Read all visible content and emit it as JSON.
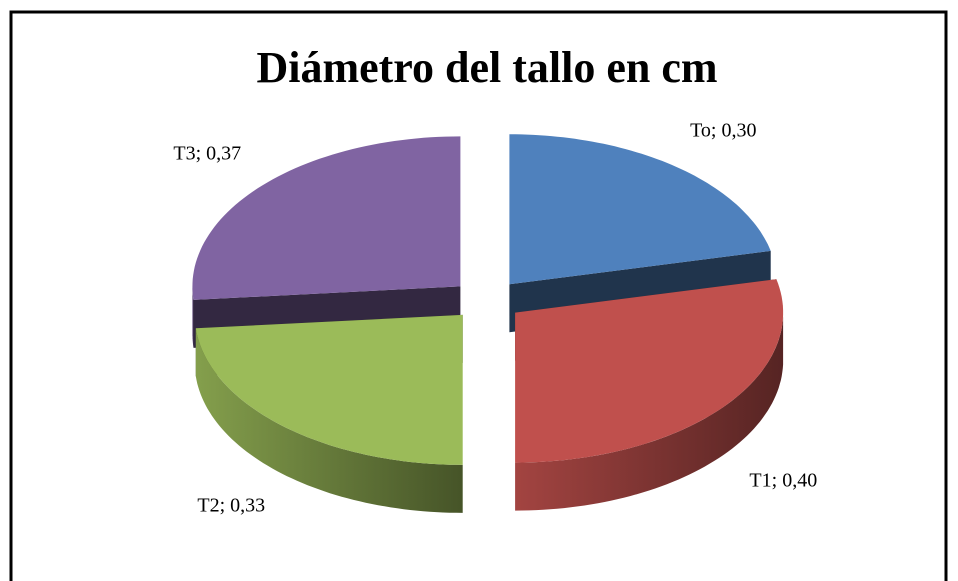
{
  "chart_data": {
    "type": "pie",
    "title": "Diámetro del tallo en cm",
    "categories": [
      "To",
      "T1",
      "T2",
      "T3"
    ],
    "values": [
      0.3,
      0.4,
      0.33,
      0.37
    ],
    "value_labels": [
      "To; 0,30",
      "T1; 0,40",
      "T2; 0,33",
      "T3; 0,37"
    ],
    "colors": [
      "#4f81bd",
      "#c0504d",
      "#9bbb59",
      "#8064a2"
    ]
  }
}
